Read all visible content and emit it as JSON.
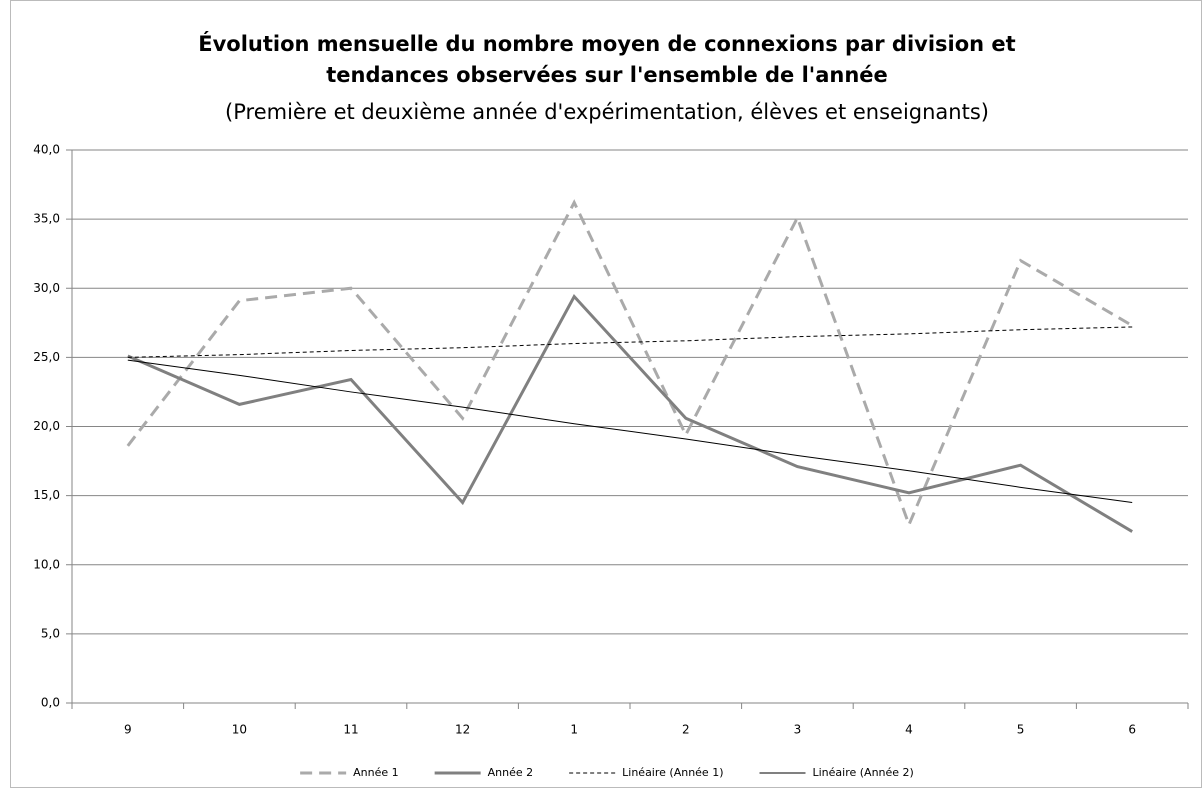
{
  "chart_data": {
    "type": "line",
    "title": [
      "Évolution mensuelle du nombre moyen de connexions par division et",
      "tendances observées sur l'ensemble de l'année"
    ],
    "subtitle": "(Première et deuxième année d'expérimentation, élèves et enseignants)",
    "categories": [
      "9",
      "10",
      "11",
      "12",
      "1",
      "2",
      "3",
      "4",
      "5",
      "6"
    ],
    "series": [
      {
        "name": "Année 1",
        "color": "#aaaaaa",
        "dash": "12,7",
        "width": 3,
        "values": [
          18.6,
          29.1,
          30.0,
          20.6,
          36.2,
          19.4,
          35.1,
          12.9,
          32.0,
          27.3
        ]
      },
      {
        "name": "Année 2",
        "color": "#808080",
        "dash": "none",
        "width": 3,
        "values": [
          25.1,
          21.6,
          23.4,
          14.5,
          29.4,
          20.6,
          17.1,
          15.2,
          17.2,
          12.4
        ]
      },
      {
        "name": "Linéaire (Année 1)",
        "color": "#000000",
        "dash": "4,3",
        "width": 1,
        "values": [
          25.0,
          25.2,
          25.5,
          25.7,
          26.0,
          26.2,
          26.5,
          26.7,
          27.0,
          27.2
        ]
      },
      {
        "name": "Linéaire (Année 2)",
        "color": "#000000",
        "dash": "none",
        "width": 1,
        "values": [
          24.8,
          23.7,
          22.5,
          21.4,
          20.2,
          19.1,
          17.9,
          16.8,
          15.6,
          14.5
        ]
      }
    ],
    "ylim": [
      0,
      40
    ],
    "yticks": [
      {
        "value": 0,
        "label": "0,0"
      },
      {
        "value": 5,
        "label": "5,0"
      },
      {
        "value": 10,
        "label": "10,0"
      },
      {
        "value": 15,
        "label": "15,0"
      },
      {
        "value": 20,
        "label": "20,0"
      },
      {
        "value": 25,
        "label": "25,0"
      },
      {
        "value": 30,
        "label": "30,0"
      },
      {
        "value": 35,
        "label": "35,0"
      },
      {
        "value": 40,
        "label": "40,0"
      }
    ],
    "grid": true,
    "legend": "bottom"
  }
}
